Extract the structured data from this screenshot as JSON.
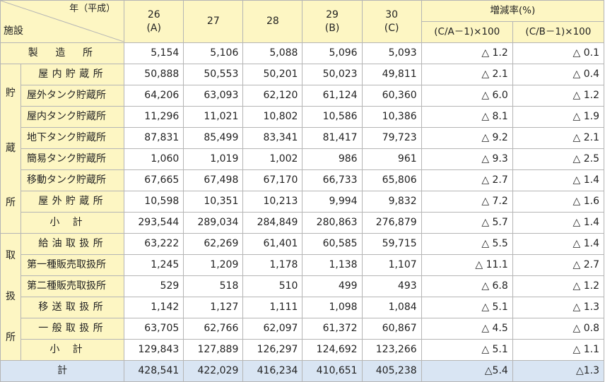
{
  "header": {
    "year_label": "年（平成）",
    "facility_label": "施設",
    "years": [
      {
        "year": "26",
        "code": "(A)"
      },
      {
        "year": "27",
        "code": ""
      },
      {
        "year": "28",
        "code": ""
      },
      {
        "year": "29",
        "code": "(B)"
      },
      {
        "year": "30",
        "code": "(C)"
      }
    ],
    "rate_title": "増減率(%)",
    "rate_cols": [
      "(C/A－1)×100",
      "(C/B－1)×100"
    ]
  },
  "rows": {
    "seizo": {
      "name": "製　造　所",
      "values": [
        "5,154",
        "5,106",
        "5,088",
        "5,096",
        "5,093"
      ],
      "rates": [
        "△ 1.2",
        "△ 0.1"
      ]
    },
    "storage_group": {
      "label_chars": [
        "貯",
        "蔵",
        "所"
      ]
    },
    "storage": [
      {
        "name": "屋内貯蔵所",
        "values": [
          "50,888",
          "50,553",
          "50,201",
          "50,023",
          "49,811"
        ],
        "rates": [
          "△ 2.1",
          "△ 0.4"
        ]
      },
      {
        "name": "屋外タンク貯蔵所",
        "values": [
          "64,206",
          "63,093",
          "62,120",
          "61,124",
          "60,360"
        ],
        "rates": [
          "△ 6.0",
          "△ 1.2"
        ]
      },
      {
        "name": "屋内タンク貯蔵所",
        "values": [
          "11,296",
          "11,021",
          "10,802",
          "10,586",
          "10,386"
        ],
        "rates": [
          "△ 8.1",
          "△ 1.9"
        ]
      },
      {
        "name": "地下タンク貯蔵所",
        "values": [
          "87,831",
          "85,499",
          "83,341",
          "81,417",
          "79,723"
        ],
        "rates": [
          "△ 9.2",
          "△ 2.1"
        ]
      },
      {
        "name": "簡易タンク貯蔵所",
        "values": [
          "1,060",
          "1,019",
          "1,002",
          "986",
          "961"
        ],
        "rates": [
          "△ 9.3",
          "△ 2.5"
        ]
      },
      {
        "name": "移動タンク貯蔵所",
        "values": [
          "67,665",
          "67,498",
          "67,170",
          "66,733",
          "65,806"
        ],
        "rates": [
          "△ 2.7",
          "△ 1.4"
        ]
      },
      {
        "name": "屋外貯蔵所",
        "values": [
          "10,598",
          "10,351",
          "10,213",
          "9,994",
          "9,832"
        ],
        "rates": [
          "△ 7.2",
          "△ 1.6"
        ]
      },
      {
        "name": "小計",
        "values": [
          "293,544",
          "289,034",
          "284,849",
          "280,863",
          "276,879"
        ],
        "rates": [
          "△ 5.7",
          "△ 1.4"
        ]
      }
    ],
    "handling_group": {
      "label_chars": [
        "取",
        "扱",
        "所"
      ]
    },
    "handling": [
      {
        "name": "給油取扱所",
        "values": [
          "63,222",
          "62,269",
          "61,401",
          "60,585",
          "59,715"
        ],
        "rates": [
          "△ 5.5",
          "△ 1.4"
        ]
      },
      {
        "name": "第一種販売取扱所",
        "values": [
          "1,245",
          "1,209",
          "1,178",
          "1,138",
          "1,107"
        ],
        "rates": [
          "△ 11.1",
          "△ 2.7"
        ]
      },
      {
        "name": "第二種販売取扱所",
        "values": [
          "529",
          "518",
          "510",
          "499",
          "493"
        ],
        "rates": [
          "△ 6.8",
          "△ 1.2"
        ]
      },
      {
        "name": "移送取扱所",
        "values": [
          "1,142",
          "1,127",
          "1,111",
          "1,098",
          "1,084"
        ],
        "rates": [
          "△ 5.1",
          "△ 1.3"
        ]
      },
      {
        "name": "一般取扱所",
        "values": [
          "63,705",
          "62,766",
          "62,097",
          "61,372",
          "60,867"
        ],
        "rates": [
          "△ 4.5",
          "△ 0.8"
        ]
      },
      {
        "name": "小計",
        "values": [
          "129,843",
          "127,889",
          "126,297",
          "124,692",
          "123,266"
        ],
        "rates": [
          "△ 5.1",
          "△ 1.1"
        ]
      }
    ],
    "total": {
      "name": "計",
      "values": [
        "428,541",
        "422,029",
        "416,234",
        "410,651",
        "405,238"
      ],
      "rates": [
        "△5.4",
        "△1.3"
      ]
    }
  }
}
